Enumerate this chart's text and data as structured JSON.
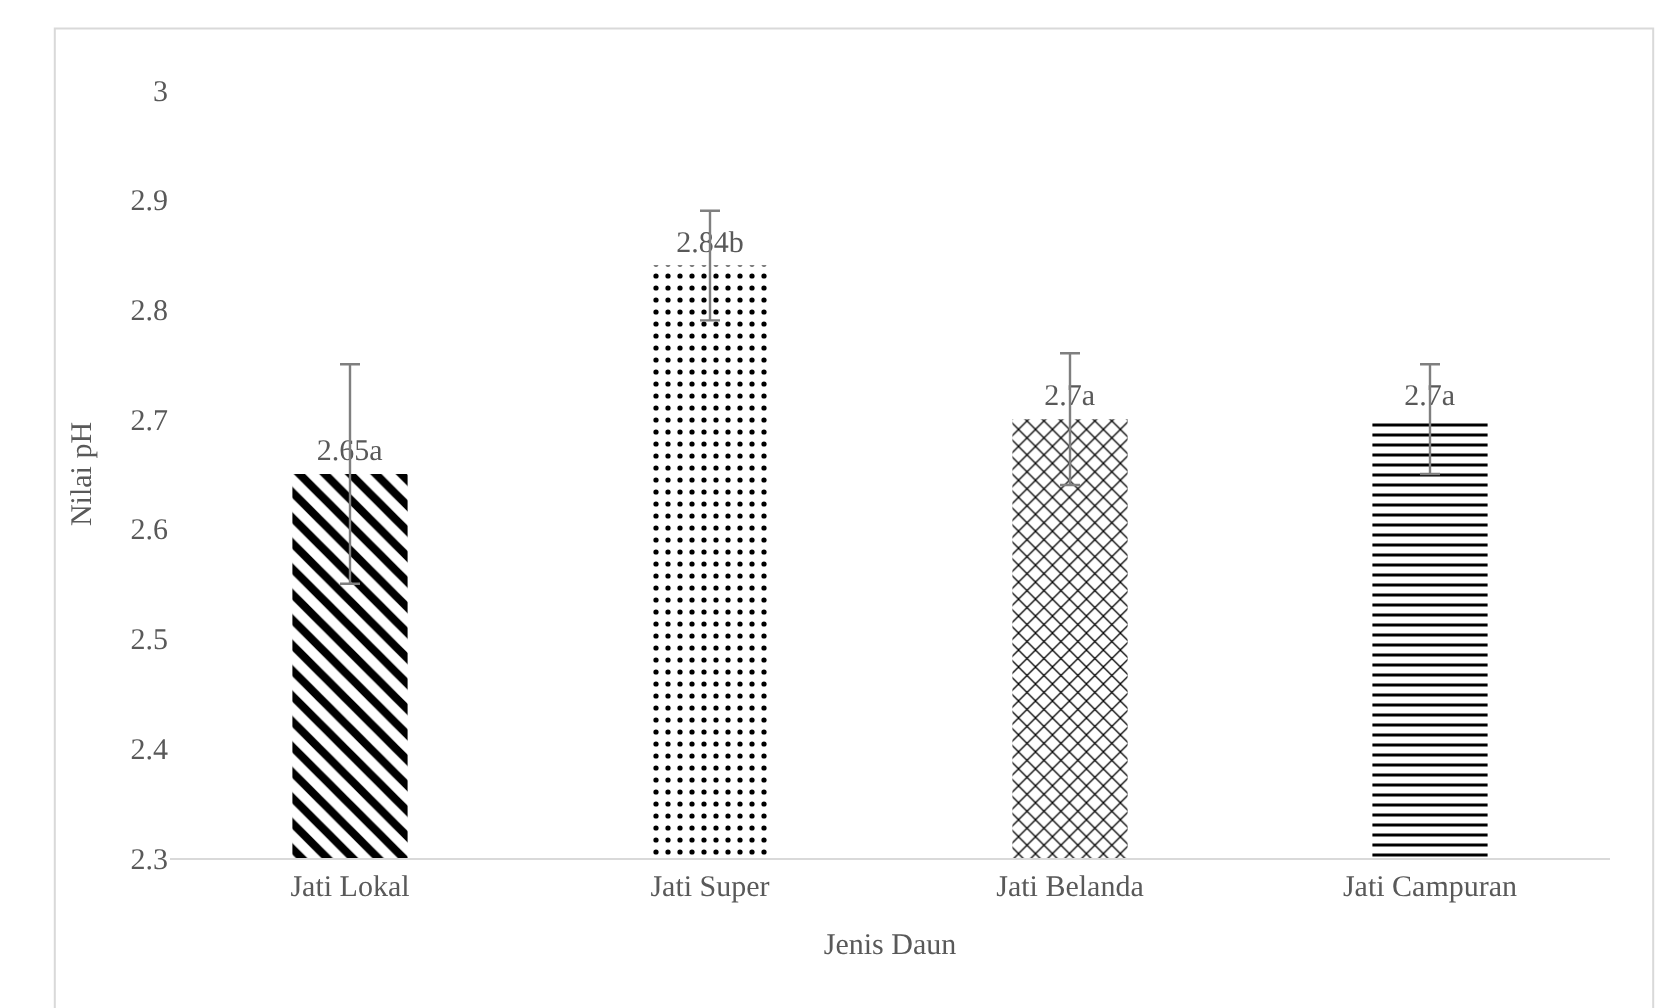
{
  "chart_data": {
    "type": "bar",
    "xlabel": "Jenis Daun",
    "ylabel": "Nilai pH",
    "categories": [
      "Jati Lokal",
      "Jati Super",
      "Jati Belanda",
      "Jati Campuran"
    ],
    "values": [
      2.65,
      2.84,
      2.7,
      2.7
    ],
    "value_labels": [
      "2.65a",
      "2.84b",
      "2.7a",
      "2.7a"
    ],
    "errors": [
      0.1,
      0.05,
      0.06,
      0.05
    ],
    "color": "#000000",
    "ylim": [
      2.3,
      3
    ],
    "yticks": [
      2.3,
      2.4,
      2.5,
      2.6,
      2.7,
      2.8,
      2.9,
      3
    ]
  }
}
